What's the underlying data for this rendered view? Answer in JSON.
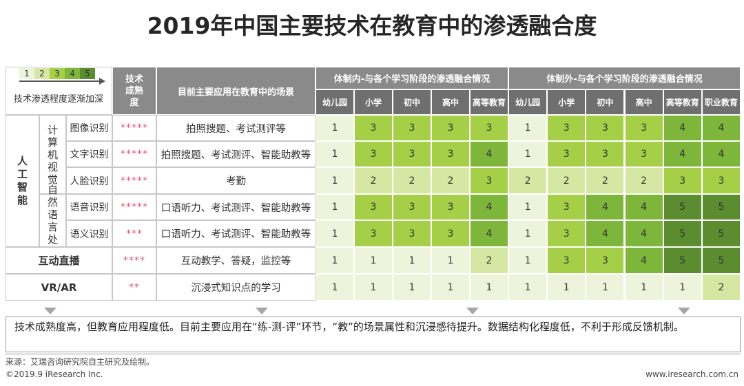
{
  "title": "2019年中国主要技术在教育中的渗透融合度",
  "legend": {
    "levels": [
      "1",
      "2",
      "3",
      "4",
      "5"
    ],
    "colors": [
      "#eef4dc",
      "#d5e7a3",
      "#a4cf47",
      "#7eb53b",
      "#5b8c30"
    ],
    "label": "技术渗透程度逐渐加深"
  },
  "header": {
    "maturity": "技术成熟度",
    "scene": "目前主要应用在教育中的场景",
    "inside": "体制内-与各个学习阶段的渗透融合情况",
    "outside": "体制外-与各个学习阶段的渗透融合情况",
    "inside_stages": [
      "幼儿园",
      "小学",
      "初中",
      "高中",
      "高等教育"
    ],
    "outside_stages": [
      "幼儿园",
      "小学",
      "初中",
      "高中",
      "高等教育",
      "职业教育"
    ]
  },
  "ai": {
    "name": "人工智能",
    "subgroups": [
      {
        "name": "计算机视觉",
        "rows": [
          {
            "name": "图像识别",
            "maturity": "*****",
            "scene": "拍照搜题、考试测评等",
            "inside": [
              "1",
              "3",
              "3",
              "3",
              "3"
            ],
            "outside": [
              "1",
              "3",
              "3",
              "3",
              "4",
              "4"
            ]
          },
          {
            "name": "文字识别",
            "maturity": "*****",
            "scene": "拍照搜题、考试测评、智能助教等",
            "inside": [
              "1",
              "3",
              "3",
              "3",
              "4"
            ],
            "outside": [
              "1",
              "3",
              "3",
              "3",
              "4",
              "4"
            ]
          },
          {
            "name": "人脸识别",
            "maturity": "*****",
            "scene": "考勤",
            "inside": [
              "1",
              "2",
              "2",
              "2",
              "3"
            ],
            "outside": [
              "2",
              "2",
              "2",
              "2",
              "3",
              "3"
            ]
          }
        ]
      },
      {
        "name": "自然语言处理",
        "rows": [
          {
            "name": "语音识别",
            "maturity": "*****",
            "scene": "口语听力、考试测评、智能助教等",
            "inside": [
              "1",
              "3",
              "3",
              "3",
              "4"
            ],
            "outside": [
              "1",
              "3",
              "4",
              "4",
              "5",
              "5"
            ]
          },
          {
            "name": "语义识别",
            "maturity": "***",
            "scene": "口语听力、考试测评、智能助教等",
            "inside": [
              "1",
              "3",
              "3",
              "3",
              "4"
            ],
            "outside": [
              "1",
              "3",
              "4",
              "4",
              "5",
              "5"
            ]
          }
        ]
      }
    ]
  },
  "others": [
    {
      "name": "互动直播",
      "maturity": "****",
      "scene": "互动教学、答疑，监控等",
      "inside": [
        "1",
        "1",
        "1",
        "1",
        "2"
      ],
      "outside": [
        "1",
        "3",
        "3",
        "4",
        "5",
        "5"
      ]
    },
    {
      "name": "VR/AR",
      "maturity": "**",
      "scene": "沉浸式知识点的学习",
      "inside": [
        "1",
        "1",
        "1",
        "1",
        "1"
      ],
      "outside": [
        "1",
        "1",
        "1",
        "1",
        "1",
        "2"
      ]
    }
  ],
  "summary": "技术成熟度高，但教育应用程度低。目前主要应用在“练-测-评”环节，“教”的场景属性和沉浸感待提升。数据结构化程度低，不利于形成反馈机制。",
  "source": "来源：艾瑞咨询研究院自主研究及绘制。",
  "copyright": "©2019.9 iResearch Inc.",
  "website": "www.iresearch.com.cn"
}
